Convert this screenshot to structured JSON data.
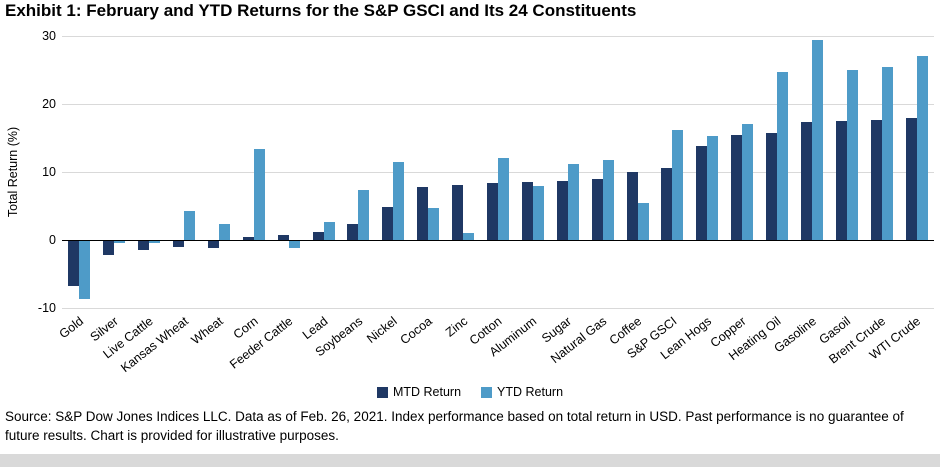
{
  "title": "Exhibit 1: February and YTD Returns for the S&P GSCI and Its 24 Constituents",
  "source_note": "Source: S&P Dow Jones Indices LLC. Data as of Feb. 26, 2021. Index performance based on total return in USD. Past performance is no guarantee of future results. Chart is provided for illustrative purposes.",
  "chart_data": {
    "type": "bar",
    "title": "Exhibit 1: February and YTD Returns for the S&P GSCI and Its 24 Constituents",
    "xlabel": "",
    "ylabel": "Total Return (%)",
    "ylim": [
      -10,
      30
    ],
    "yticks": [
      30,
      20,
      10,
      0,
      -10
    ],
    "grid": true,
    "legend_position": "bottom",
    "categories": [
      "Gold",
      "Silver",
      "Live Cattle",
      "Kansas Wheat",
      "Wheat",
      "Corn",
      "Feeder Cattle",
      "Lead",
      "Soybeans",
      "Nickel",
      "Cocoa",
      "Zinc",
      "Cotton",
      "Aluminum",
      "Sugar",
      "Natural Gas",
      "Coffee",
      "S&P GSCI",
      "Lean Hogs",
      "Copper",
      "Heating Oil",
      "Gasoline",
      "Gasoil",
      "Brent Crude",
      "WTI Crude"
    ],
    "series": [
      {
        "name": "MTD Return",
        "color": "#1f3864",
        "values": [
          -6.7,
          -2.2,
          -1.5,
          -1.1,
          -1.2,
          0.5,
          0.8,
          1.2,
          2.4,
          4.9,
          7.8,
          8.1,
          8.4,
          8.5,
          8.7,
          9.0,
          10.0,
          10.6,
          13.8,
          15.5,
          15.8,
          17.3,
          17.5,
          17.7,
          17.9
        ]
      },
      {
        "name": "YTD Return",
        "color": "#4e9bc8",
        "values": [
          -8.7,
          -0.5,
          -0.5,
          4.2,
          2.4,
          13.4,
          -1.2,
          2.6,
          7.3,
          11.5,
          4.7,
          1.0,
          12.0,
          8.0,
          11.2,
          11.8,
          5.4,
          16.2,
          15.3,
          17.0,
          24.7,
          29.4,
          25.0,
          25.4,
          27.0
        ]
      }
    ]
  }
}
